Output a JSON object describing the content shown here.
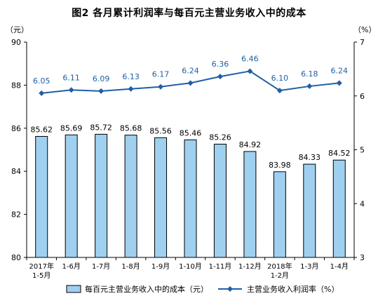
{
  "chart_data": {
    "type": "bar",
    "title": "图2  各月累计利润率与每百元主营业务收入中的成本",
    "categories": [
      [
        "2017年",
        "1-5月"
      ],
      [
        "1-6月"
      ],
      [
        "1-7月"
      ],
      [
        "1-8月"
      ],
      [
        "1-9月"
      ],
      [
        "1-10月"
      ],
      [
        "1-11月"
      ],
      [
        "1-12月"
      ],
      [
        "2018年",
        "1-2月"
      ],
      [
        "1-3月"
      ],
      [
        "1-4月"
      ]
    ],
    "series": [
      {
        "name": "每百元主营业务收入中的成本（元）",
        "type": "bar",
        "axis": "left",
        "color": "#9fd0ef",
        "values": [
          85.62,
          85.69,
          85.72,
          85.68,
          85.56,
          85.46,
          85.26,
          84.92,
          83.98,
          84.33,
          84.52
        ],
        "labels": [
          "85.62",
          "85.69",
          "85.72",
          "85.68",
          "85.56",
          "85.46",
          "85.26",
          "84.92",
          "83.98",
          "84.33",
          "84.52"
        ]
      },
      {
        "name": "主营业务收入利润率（%）",
        "type": "line",
        "axis": "right",
        "color": "#1f5fa6",
        "values": [
          6.05,
          6.11,
          6.09,
          6.13,
          6.17,
          6.24,
          6.36,
          6.46,
          6.1,
          6.18,
          6.24
        ],
        "labels": [
          "6.05",
          "6.11",
          "6.09",
          "6.13",
          "6.17",
          "6.24",
          "6.36",
          "6.46",
          "6.10",
          "6.18",
          "6.24"
        ]
      }
    ],
    "y_left": {
      "unit": "（元）",
      "ylim": [
        80,
        90
      ],
      "ticks": [
        "80",
        "82",
        "84",
        "86",
        "88",
        "90"
      ]
    },
    "y_right": {
      "unit": "（%）",
      "ylim": [
        3,
        7
      ],
      "ticks": [
        "3",
        "4",
        "5",
        "6",
        "7"
      ]
    },
    "legend_position": "bottom",
    "grid": false
  }
}
